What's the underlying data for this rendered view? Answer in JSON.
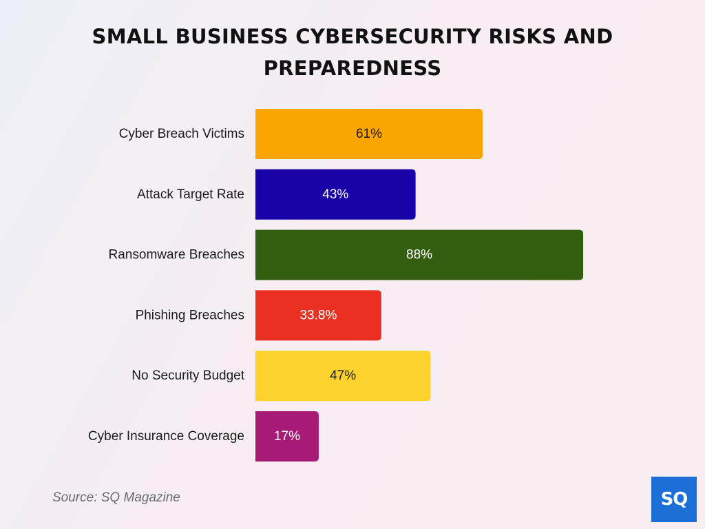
{
  "title": "SMALL BUSINESS CYBERSECURITY RISKS AND PREPAREDNESS",
  "source": "Source: SQ Magazine",
  "logo_text": "SQ",
  "chart_data": {
    "type": "bar",
    "orientation": "horizontal",
    "title": "SMALL BUSINESS CYBERSECURITY RISKS AND PREPAREDNESS",
    "categories": [
      "Cyber Breach Victims",
      "Attack Target Rate",
      "Ransomware Breaches",
      "Phishing Breaches",
      "No Security Budget",
      "Cyber Insurance Coverage"
    ],
    "values": [
      61,
      43,
      88,
      33.8,
      47,
      17
    ],
    "value_labels": [
      "61%",
      "43%",
      "88%",
      "33.8%",
      "47%",
      "17%"
    ],
    "colors": [
      "#FBA500",
      "#1802A8",
      "#345E0F",
      "#EA3121",
      "#FED22C",
      "#A71B76"
    ],
    "label_colors": [
      "#1a1a1a",
      "#ffffff",
      "#ffffff",
      "#ffffff",
      "#1a1a1a",
      "#ffffff"
    ],
    "unit": "%",
    "xlim": [
      0,
      100
    ],
    "grid": false,
    "legend": "none"
  }
}
